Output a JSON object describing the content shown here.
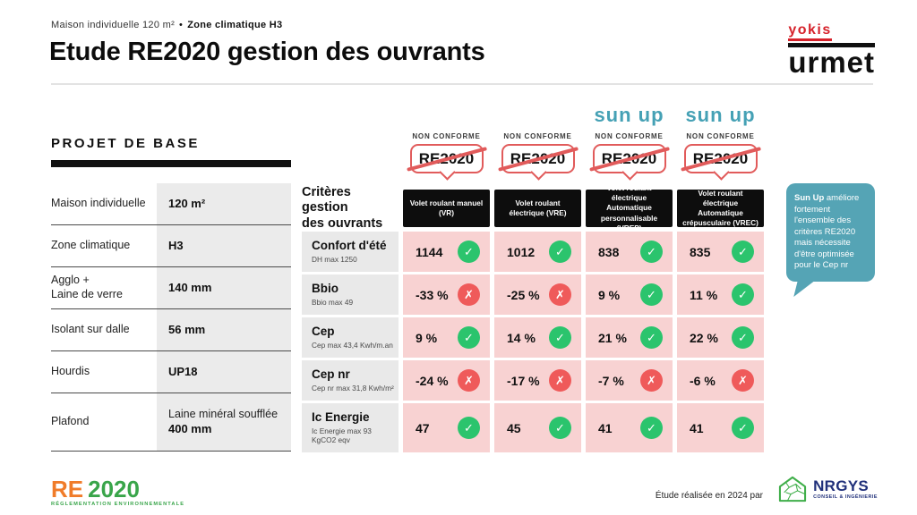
{
  "header": {
    "subtitle_left": "Maison individuelle 120 m²",
    "subtitle_sep": "•",
    "subtitle_right": "Zone climatique H3",
    "title": "Etude RE2020 gestion des ouvrants",
    "logo_yokis": "yokis",
    "logo_urmet": "urmet"
  },
  "project_panel": {
    "title": "PROJET DE BASE",
    "rows": [
      {
        "label": "Maison individuelle",
        "value": "120 m²"
      },
      {
        "label": "Zone climatique",
        "value": "H3"
      },
      {
        "label": "Agglo +\nLaine de verre",
        "value": "140 mm"
      },
      {
        "label": "Isolant sur dalle",
        "value": "56 mm"
      },
      {
        "label": "Hourdis",
        "value": "UP18"
      },
      {
        "label": "Plafond",
        "value_light": "Laine minéral soufflée",
        "value": "400 mm"
      }
    ]
  },
  "table": {
    "corner_label": "Critères gestion\ndes ouvrants",
    "non_conforme": "NON CONFORME",
    "badge_text": "RE2020",
    "sunup_text": "sun up",
    "icons": {
      "pass": "✓",
      "fail": "✗"
    },
    "columns": [
      {
        "header": "Volet roulant manuel (VR)",
        "sunup": false
      },
      {
        "header": "Volet roulant électrique (VRE)",
        "sunup": false
      },
      {
        "header": "Volet roulant électrique Automatique personnalisable (VREP)",
        "sunup": true
      },
      {
        "header": "Volet roulant électrique Automatique crépusculaire (VREC)",
        "sunup": true
      }
    ],
    "rows": [
      {
        "name": "Confort d'été",
        "limit": "DH max 1250",
        "cells": [
          {
            "value": "1144",
            "status": "pass"
          },
          {
            "value": "1012",
            "status": "pass"
          },
          {
            "value": "838",
            "status": "pass"
          },
          {
            "value": "835",
            "status": "pass"
          }
        ]
      },
      {
        "name": "Bbio",
        "limit": "Bbio max 49",
        "cells": [
          {
            "value": "-33 %",
            "status": "fail"
          },
          {
            "value": "-25 %",
            "status": "fail"
          },
          {
            "value": "9 %",
            "status": "pass"
          },
          {
            "value": "11 %",
            "status": "pass"
          }
        ]
      },
      {
        "name": "Cep",
        "limit": "Cep max 43,4 Kwh/m.an",
        "cells": [
          {
            "value": "9 %",
            "status": "pass"
          },
          {
            "value": "14 %",
            "status": "pass"
          },
          {
            "value": "21 %",
            "status": "pass"
          },
          {
            "value": "22 %",
            "status": "pass"
          }
        ]
      },
      {
        "name": "Cep nr",
        "limit": "Cep nr max 31,8 Kwh/m²",
        "cells": [
          {
            "value": "-24 %",
            "status": "fail"
          },
          {
            "value": "-17 %",
            "status": "fail"
          },
          {
            "value": "-7 %",
            "status": "fail"
          },
          {
            "value": "-6 %",
            "status": "fail"
          }
        ]
      },
      {
        "name": "Ic Energie",
        "limit": "Ic Energie max 93\nKgCO2 eqv",
        "cells": [
          {
            "value": "47",
            "status": "pass"
          },
          {
            "value": "45",
            "status": "pass"
          },
          {
            "value": "41",
            "status": "pass"
          },
          {
            "value": "41",
            "status": "pass"
          }
        ]
      }
    ]
  },
  "callout": {
    "bold": "Sun Up",
    "text": " améliore fortement l'ensemble des critères RE2020 mais nécessite d'être optimisée pour le Cep nr"
  },
  "footer": {
    "re2020_re": "RE",
    "re2020_year": "2020",
    "re2020_sub": "RÉGLEMENTATION ENVIRONNEMENTALE",
    "credit": "Étude réalisée en 2024 par",
    "nrgys_name": "NRGYS",
    "nrgys_sub": "CONSEIL & INGÉNIERIE"
  },
  "colors": {
    "badge_red": "#e15b5b",
    "pass_green": "#2bc46d",
    "fail_red": "#ef5a5a",
    "cell_pink": "#f8d2d2",
    "label_gray": "#e9e9e9",
    "sunup_teal": "#45a1b5",
    "callout_teal": "#55a4b5",
    "yokis_red": "#d6222b",
    "re_orange": "#f07c2a",
    "re_green": "#39a54a",
    "nrgys_navy": "#20307a",
    "nrgys_green": "#3fae49"
  }
}
